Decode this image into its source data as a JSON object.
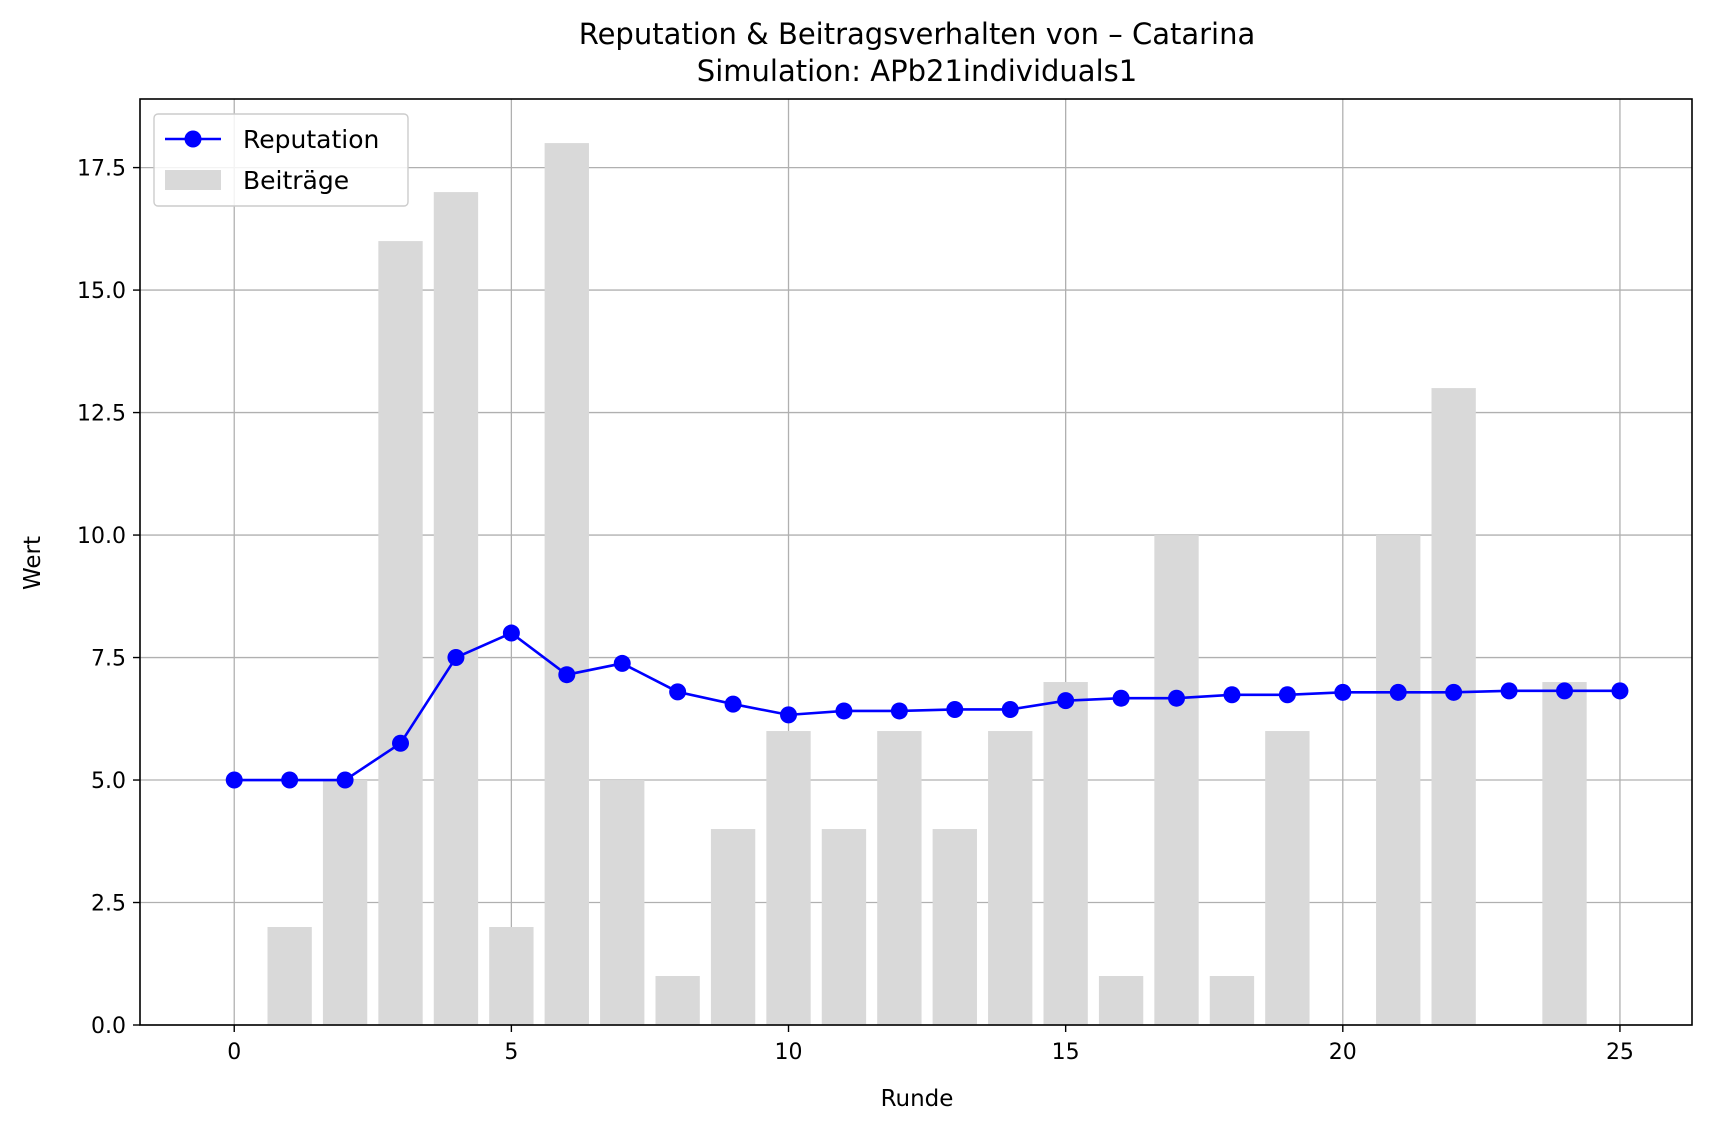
{
  "chart_data": {
    "type": "bar+line",
    "title": "Reputation & Beitragsverhalten von – Catarina",
    "subtitle": "Simulation: APb21individuals1",
    "xlabel": "Runde",
    "ylabel": "Wert",
    "xlim": [
      -1.7,
      26.3
    ],
    "ylim": [
      0,
      18.9
    ],
    "xticks": [
      0,
      5,
      10,
      15,
      20,
      25
    ],
    "xtick_labels": [
      "0",
      "5",
      "10",
      "15",
      "20",
      "25"
    ],
    "yticks": [
      0,
      2.5,
      5,
      7.5,
      10,
      12.5,
      15,
      17.5
    ],
    "ytick_labels": [
      "0.0",
      "2.5",
      "5.0",
      "7.5",
      "10.0",
      "12.5",
      "15.0",
      "17.5"
    ],
    "grid": true,
    "legend_position": "upper left",
    "legend": [
      "Reputation",
      "Beiträge"
    ],
    "x": [
      0,
      1,
      2,
      3,
      4,
      5,
      6,
      7,
      8,
      9,
      10,
      11,
      12,
      13,
      14,
      15,
      16,
      17,
      18,
      19,
      20,
      21,
      22,
      23,
      24,
      25
    ],
    "series": [
      {
        "name": "Reputation",
        "type": "line",
        "color": "#0000ff",
        "marker": "circle",
        "values": [
          5.0,
          5.0,
          5.0,
          5.75,
          7.5,
          8.0,
          7.15,
          7.38,
          6.8,
          6.55,
          6.33,
          6.41,
          6.41,
          6.44,
          6.44,
          6.62,
          6.67,
          6.67,
          6.74,
          6.74,
          6.79,
          6.79,
          6.79,
          6.82,
          6.82,
          6.82
        ]
      },
      {
        "name": "Beiträge",
        "type": "bar",
        "color": "#d9d9d9",
        "values": [
          0,
          2,
          5,
          16,
          17,
          2,
          18,
          5,
          1,
          4,
          6,
          4,
          6,
          4,
          6,
          7,
          1,
          10,
          1,
          6,
          0,
          10,
          13,
          0,
          7,
          0
        ]
      }
    ]
  }
}
